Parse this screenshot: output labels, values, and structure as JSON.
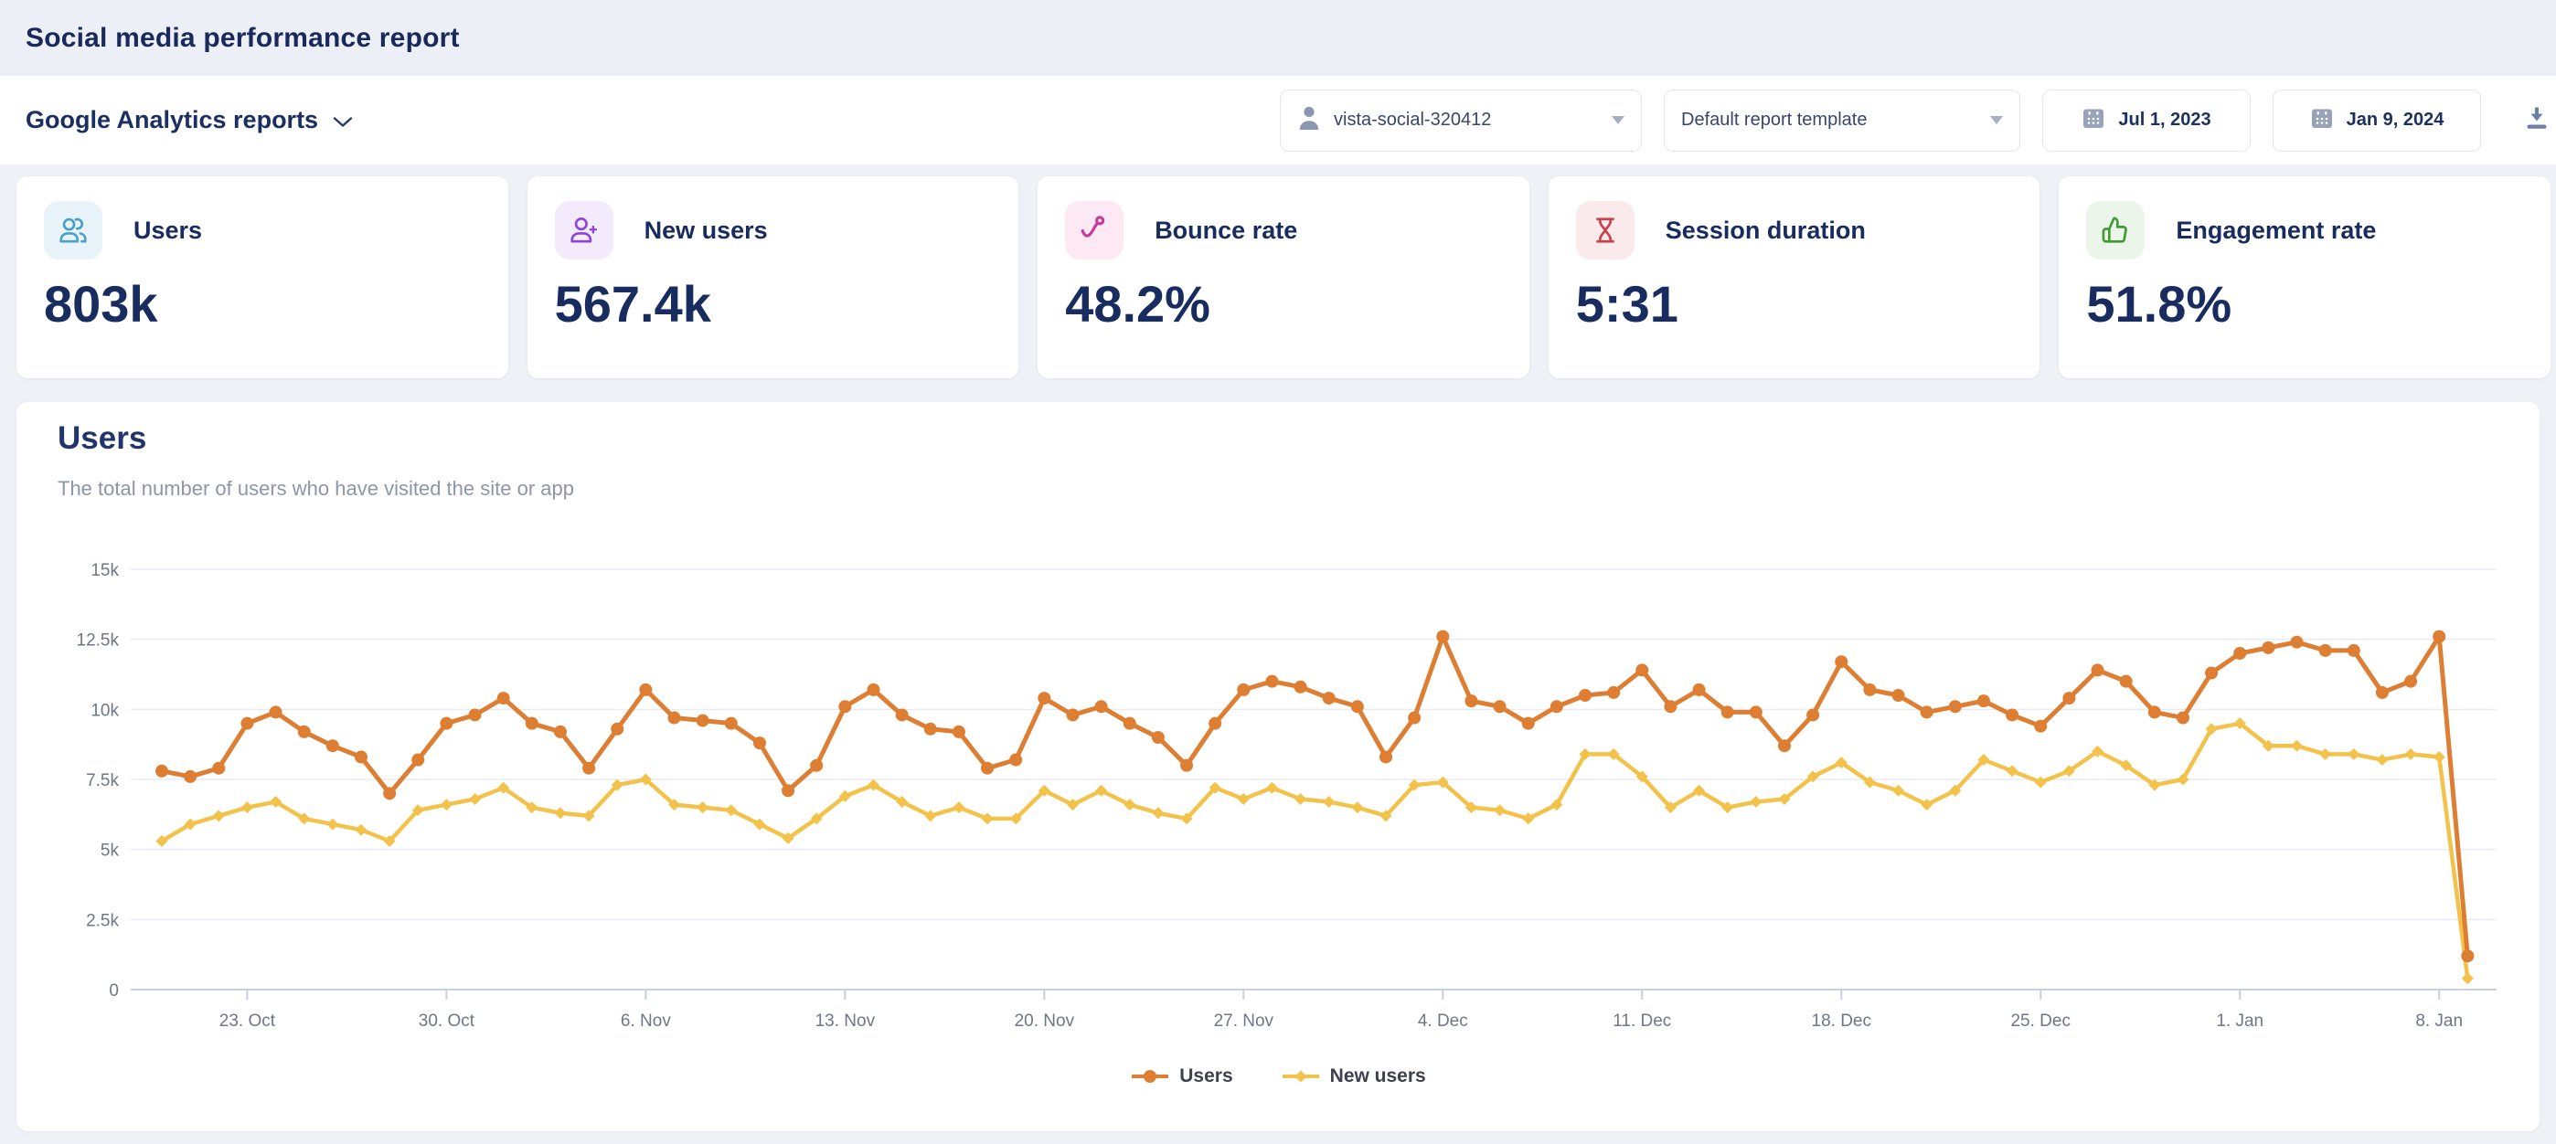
{
  "header": {
    "title": "Social media performance report"
  },
  "toolbar": {
    "reports_dropdown": {
      "label": "Google Analytics reports"
    },
    "account_select": {
      "value": "vista-social-320412"
    },
    "template_select": {
      "value": "Default report template"
    },
    "date_from": {
      "value": "Jul 1, 2023"
    },
    "date_to": {
      "value": "Jan 9, 2024"
    }
  },
  "stat_cards": [
    {
      "label": "Users",
      "value": "803k",
      "icon": "users-icon",
      "icon_color": "#4aa0c7",
      "icon_bg": "#e8f4f9"
    },
    {
      "label": "New users",
      "value": "567.4k",
      "icon": "user-plus-icon",
      "icon_color": "#8d44d8",
      "icon_bg": "#f3eafb"
    },
    {
      "label": "Bounce rate",
      "value": "48.2%",
      "icon": "bounce-arrow-icon",
      "icon_color": "#c43c9c",
      "icon_bg": "#fce9f4"
    },
    {
      "label": "Session duration",
      "value": "5:31",
      "icon": "hourglass-icon",
      "icon_color": "#c8444e",
      "icon_bg": "#fbeaec"
    },
    {
      "label": "Engagement rate",
      "value": "51.8%",
      "icon": "thumbs-up-icon",
      "icon_color": "#3f9b32",
      "icon_bg": "#ecf5e9"
    }
  ],
  "chart_section": {
    "title": "Users",
    "subtitle": "The total number of users who have visited the site or app"
  },
  "chart_data": {
    "type": "line",
    "title": "Users",
    "unit": "thousands",
    "ylim": [
      0,
      15
    ],
    "grid": "horizontal",
    "legend_position": "bottom",
    "dates": [
      "20. Oct",
      "21. Oct",
      "22. Oct",
      "23. Oct",
      "24. Oct",
      "25. Oct",
      "26. Oct",
      "27. Oct",
      "28. Oct",
      "29. Oct",
      "30. Oct",
      "31. Oct",
      "1. Nov",
      "2. Nov",
      "3. Nov",
      "4. Nov",
      "5. Nov",
      "6. Nov",
      "7. Nov",
      "8. Nov",
      "9. Nov",
      "10. Nov",
      "11. Nov",
      "12. Nov",
      "13. Nov",
      "14. Nov",
      "15. Nov",
      "16. Nov",
      "17. Nov",
      "18. Nov",
      "19. Nov",
      "20. Nov",
      "21. Nov",
      "22. Nov",
      "23. Nov",
      "24. Nov",
      "25. Nov",
      "26. Nov",
      "27. Nov",
      "28. Nov",
      "29. Nov",
      "30. Nov",
      "1. Dec",
      "2. Dec",
      "3. Dec",
      "4. Dec",
      "5. Dec",
      "6. Dec",
      "7. Dec",
      "8. Dec",
      "9. Dec",
      "10. Dec",
      "11. Dec",
      "12. Dec",
      "13. Dec",
      "14. Dec",
      "15. Dec",
      "16. Dec",
      "17. Dec",
      "18. Dec",
      "19. Dec",
      "20. Dec",
      "21. Dec",
      "22. Dec",
      "23. Dec",
      "24. Dec",
      "25. Dec",
      "26. Dec",
      "27. Dec",
      "28. Dec",
      "29. Dec",
      "30. Dec",
      "31. Dec",
      "1. Jan",
      "2. Jan",
      "3. Jan",
      "4. Jan",
      "5. Jan",
      "6. Jan",
      "7. Jan",
      "8. Jan",
      "9. Jan"
    ],
    "series": [
      {
        "name": "Users",
        "color": "#DD7E33",
        "marker": "circle",
        "values": [
          7.8,
          7.6,
          7.9,
          9.5,
          9.9,
          9.2,
          8.7,
          8.3,
          7.0,
          8.2,
          9.5,
          9.8,
          10.4,
          9.5,
          9.2,
          7.9,
          9.3,
          10.7,
          9.7,
          9.6,
          9.5,
          8.8,
          7.1,
          8.0,
          10.1,
          10.7,
          9.8,
          9.3,
          9.2,
          7.9,
          8.2,
          10.4,
          9.8,
          10.1,
          9.5,
          9.0,
          8.0,
          9.5,
          10.7,
          11.0,
          10.8,
          10.4,
          10.1,
          8.3,
          9.7,
          12.6,
          10.3,
          10.1,
          9.5,
          10.1,
          10.5,
          10.6,
          11.4,
          10.1,
          10.7,
          9.9,
          9.9,
          8.7,
          9.8,
          11.7,
          10.7,
          10.5,
          9.9,
          10.1,
          10.3,
          9.8,
          9.4,
          10.4,
          11.4,
          11.0,
          9.9,
          9.7,
          11.3,
          12.0,
          12.2,
          12.4,
          12.1,
          12.1,
          10.6,
          11.0,
          12.6,
          1.2
        ]
      },
      {
        "name": "New users",
        "color": "#F2C24B",
        "marker": "diamond",
        "values": [
          5.3,
          5.9,
          6.2,
          6.5,
          6.7,
          6.1,
          5.9,
          5.7,
          5.3,
          6.4,
          6.6,
          6.8,
          7.2,
          6.5,
          6.3,
          6.2,
          7.3,
          7.5,
          6.6,
          6.5,
          6.4,
          5.9,
          5.4,
          6.1,
          6.9,
          7.3,
          6.7,
          6.2,
          6.5,
          6.1,
          6.1,
          7.1,
          6.6,
          7.1,
          6.6,
          6.3,
          6.1,
          7.2,
          6.8,
          7.2,
          6.8,
          6.7,
          6.5,
          6.2,
          7.3,
          7.4,
          6.5,
          6.4,
          6.1,
          6.6,
          8.4,
          8.4,
          7.6,
          6.5,
          7.1,
          6.5,
          6.7,
          6.8,
          7.6,
          8.1,
          7.4,
          7.1,
          6.6,
          7.1,
          8.2,
          7.8,
          7.4,
          7.8,
          8.5,
          8.0,
          7.3,
          7.5,
          9.3,
          9.5,
          8.7,
          8.7,
          8.4,
          8.4,
          8.2,
          8.4,
          8.3,
          0.4
        ]
      }
    ],
    "x_ticks": [
      {
        "index": 3,
        "label": "23. Oct"
      },
      {
        "index": 10,
        "label": "30. Oct"
      },
      {
        "index": 17,
        "label": "6. Nov"
      },
      {
        "index": 24,
        "label": "13. Nov"
      },
      {
        "index": 31,
        "label": "20. Nov"
      },
      {
        "index": 38,
        "label": "27. Nov"
      },
      {
        "index": 45,
        "label": "4. Dec"
      },
      {
        "index": 52,
        "label": "11. Dec"
      },
      {
        "index": 59,
        "label": "18. Dec"
      },
      {
        "index": 66,
        "label": "25. Dec"
      },
      {
        "index": 73,
        "label": "1. Jan"
      },
      {
        "index": 80,
        "label": "8. Jan"
      }
    ],
    "y_ticks": [
      {
        "value": 0,
        "label": "0"
      },
      {
        "value": 2.5,
        "label": "2.5k"
      },
      {
        "value": 5,
        "label": "5k"
      },
      {
        "value": 7.5,
        "label": "7.5k"
      },
      {
        "value": 10,
        "label": "10k"
      },
      {
        "value": 12.5,
        "label": "12.5k"
      },
      {
        "value": 15,
        "label": "15k"
      }
    ]
  }
}
